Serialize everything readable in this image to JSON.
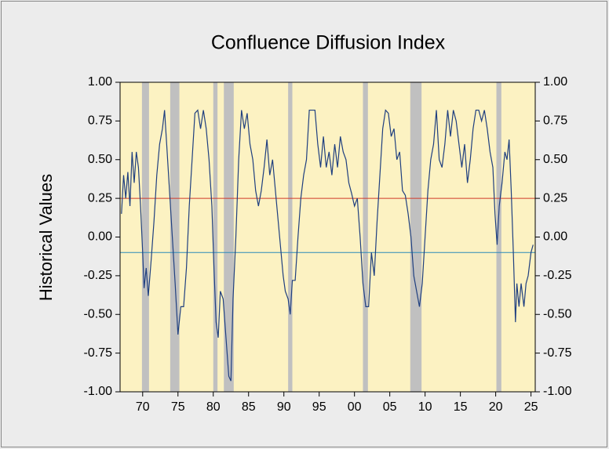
{
  "chart_data": {
    "type": "line",
    "title": "Confluence Diffusion Index",
    "y_label": "Historical Values",
    "color": "#1f3f7f",
    "x": [
      1967.0,
      1967.3,
      1967.6,
      1967.9,
      1968.2,
      1968.5,
      1968.8,
      1969.1,
      1969.4,
      1969.7,
      1970.0,
      1970.2,
      1970.5,
      1970.8,
      1971.2,
      1971.6,
      1972.0,
      1972.4,
      1972.8,
      1973.1,
      1973.4,
      1973.8,
      1974.2,
      1974.6,
      1975.0,
      1975.4,
      1975.8,
      1976.2,
      1976.6,
      1977.0,
      1977.4,
      1977.8,
      1978.2,
      1978.6,
      1979.0,
      1979.4,
      1979.8,
      1980.1,
      1980.4,
      1980.7,
      1981.0,
      1981.4,
      1981.8,
      1982.2,
      1982.5,
      1982.8,
      1983.2,
      1983.6,
      1984.0,
      1984.4,
      1984.8,
      1985.2,
      1985.6,
      1986.0,
      1986.4,
      1986.8,
      1987.2,
      1987.6,
      1988.0,
      1988.4,
      1988.8,
      1989.2,
      1989.6,
      1989.9,
      1990.2,
      1990.6,
      1990.9,
      1991.2,
      1991.6,
      1992.0,
      1992.4,
      1992.8,
      1993.2,
      1993.6,
      1994.0,
      1994.4,
      1994.8,
      1995.2,
      1995.6,
      1996.0,
      1996.4,
      1996.8,
      1997.2,
      1997.6,
      1998.0,
      1998.4,
      1998.8,
      1999.2,
      1999.6,
      2000.0,
      2000.4,
      2000.8,
      2001.2,
      2001.6,
      2002.0,
      2002.4,
      2002.8,
      2003.2,
      2003.6,
      2004.0,
      2004.4,
      2004.8,
      2005.2,
      2005.6,
      2006.0,
      2006.4,
      2006.8,
      2007.2,
      2007.6,
      2008.0,
      2008.4,
      2008.8,
      2009.2,
      2009.6,
      2010.0,
      2010.4,
      2010.8,
      2011.2,
      2011.6,
      2012.0,
      2012.4,
      2012.8,
      2013.2,
      2013.6,
      2014.0,
      2014.4,
      2014.8,
      2015.2,
      2015.6,
      2016.0,
      2016.4,
      2016.8,
      2017.2,
      2017.6,
      2018.0,
      2018.4,
      2018.8,
      2019.2,
      2019.6,
      2019.9,
      2020.2,
      2020.5,
      2020.9,
      2021.3,
      2021.6,
      2021.9,
      2022.2,
      2022.5,
      2022.8,
      2023.0,
      2023.3,
      2023.6,
      2024.0,
      2024.3,
      2024.6,
      2025.0,
      2025.3
    ],
    "values": [
      0.15,
      0.4,
      0.25,
      0.42,
      0.2,
      0.55,
      0.35,
      0.55,
      0.45,
      0.2,
      -0.1,
      -0.33,
      -0.2,
      -0.38,
      -0.15,
      0.1,
      0.4,
      0.6,
      0.7,
      0.82,
      0.6,
      0.3,
      0,
      -0.3,
      -0.63,
      -0.45,
      -0.45,
      -0.2,
      0.2,
      0.5,
      0.8,
      0.82,
      0.7,
      0.82,
      0.7,
      0.5,
      0.2,
      -0.2,
      -0.55,
      -0.65,
      -0.35,
      -0.4,
      -0.65,
      -0.9,
      -0.93,
      -0.4,
      0,
      0.5,
      0.82,
      0.7,
      0.8,
      0.6,
      0.5,
      0.3,
      0.2,
      0.3,
      0.45,
      0.63,
      0.4,
      0.5,
      0.3,
      0.1,
      -0.1,
      -0.25,
      -0.35,
      -0.4,
      -0.5,
      -0.28,
      -0.28,
      0,
      0.25,
      0.4,
      0.5,
      0.82,
      0.82,
      0.82,
      0.6,
      0.45,
      0.65,
      0.45,
      0.55,
      0.4,
      0.6,
      0.45,
      0.65,
      0.55,
      0.5,
      0.35,
      0.28,
      0.2,
      0.25,
      0,
      -0.3,
      -0.45,
      -0.45,
      -0.1,
      -0.25,
      0.1,
      0.4,
      0.7,
      0.82,
      0.8,
      0.65,
      0.7,
      0.5,
      0.55,
      0.3,
      0.27,
      0.15,
      0,
      -0.25,
      -0.35,
      -0.45,
      -0.3,
      0,
      0.3,
      0.5,
      0.6,
      0.82,
      0.5,
      0.45,
      0.6,
      0.82,
      0.65,
      0.82,
      0.75,
      0.6,
      0.45,
      0.6,
      0.35,
      0.5,
      0.7,
      0.82,
      0.82,
      0.75,
      0.82,
      0.7,
      0.55,
      0.45,
      0.15,
      -0.05,
      0.2,
      0.35,
      0.55,
      0.5,
      0.63,
      0.3,
      -0.1,
      -0.55,
      -0.3,
      -0.45,
      -0.3,
      -0.45,
      -0.3,
      -0.25,
      -0.1,
      -0.05
    ],
    "xlim": [
      1966.8,
      2025.6
    ],
    "ylim": [
      -1,
      1
    ],
    "xticks": [
      {
        "value": 1970,
        "label": "70"
      },
      {
        "value": 1975,
        "label": "75"
      },
      {
        "value": 1980,
        "label": "80"
      },
      {
        "value": 1985,
        "label": "85"
      },
      {
        "value": 1990,
        "label": "90"
      },
      {
        "value": 1995,
        "label": "95"
      },
      {
        "value": 2000,
        "label": "00"
      },
      {
        "value": 2005,
        "label": "05"
      },
      {
        "value": 2010,
        "label": "10"
      },
      {
        "value": 2015,
        "label": "15"
      },
      {
        "value": 2020,
        "label": "20"
      },
      {
        "value": 2025,
        "label": "25"
      }
    ],
    "yticks": [
      {
        "value": -1,
        "label": "-1.00"
      },
      {
        "value": -0.75,
        "label": "-0.75"
      },
      {
        "value": -0.5,
        "label": "-0.50"
      },
      {
        "value": -0.25,
        "label": "-0.25"
      },
      {
        "value": 0,
        "label": "0.00"
      },
      {
        "value": 0.25,
        "label": "0.25"
      },
      {
        "value": 0.5,
        "label": "0.50"
      },
      {
        "value": 0.75,
        "label": "0.75"
      },
      {
        "value": 1,
        "label": "1.00"
      }
    ],
    "shaded_periods": [
      {
        "start": 1969.9,
        "end": 1970.9
      },
      {
        "start": 1973.9,
        "end": 1975.2
      },
      {
        "start": 1980.0,
        "end": 1980.6
      },
      {
        "start": 1981.5,
        "end": 1982.9
      },
      {
        "start": 1990.6,
        "end": 1991.2
      },
      {
        "start": 2001.2,
        "end": 2001.9
      },
      {
        "start": 2007.9,
        "end": 2009.5
      },
      {
        "start": 2020.1,
        "end": 2020.8
      }
    ],
    "shade_color": "#c0c0c0",
    "reference_lines": [
      {
        "value": 0.25,
        "color": "#d03a2a"
      },
      {
        "value": -0.1,
        "color": "#2a8ab8"
      }
    ]
  }
}
